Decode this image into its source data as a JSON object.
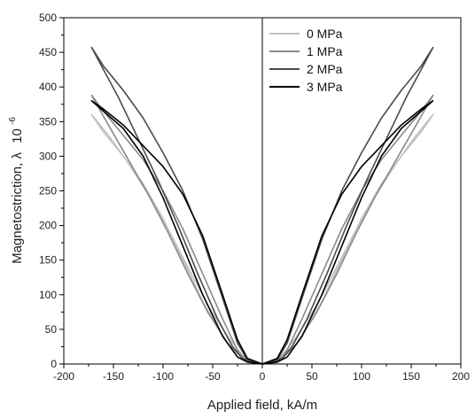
{
  "chart_data": {
    "type": "line",
    "xlabel": "Applied field, kA/m",
    "ylabel": "Magnetostriction, λ",
    "ylabel_scale": "10",
    "ylabel_scale_exp": "-6",
    "xlim": [
      -200,
      200
    ],
    "ylim": [
      0,
      500
    ],
    "xticks": [
      -200,
      -150,
      -100,
      -50,
      0,
      50,
      100,
      150,
      200
    ],
    "yticks": [
      0,
      50,
      100,
      150,
      200,
      250,
      300,
      350,
      400,
      450,
      500
    ],
    "legend_position": "top-right",
    "grid": false,
    "series": [
      {
        "name": "0 MPa",
        "color": "#c0c0c0",
        "upper": [
          [
            0,
            0
          ],
          [
            15,
            2
          ],
          [
            25,
            10
          ],
          [
            40,
            40
          ],
          [
            60,
            90
          ],
          [
            80,
            150
          ],
          [
            100,
            210
          ],
          [
            120,
            260
          ],
          [
            140,
            300
          ],
          [
            160,
            335
          ],
          [
            172,
            360
          ]
        ],
        "lower": [
          [
            0,
            0
          ],
          [
            10,
            3
          ],
          [
            20,
            12
          ],
          [
            35,
            40
          ],
          [
            55,
            85
          ],
          [
            75,
            140
          ],
          [
            95,
            195
          ],
          [
            115,
            245
          ],
          [
            135,
            290
          ],
          [
            155,
            330
          ],
          [
            172,
            360
          ]
        ]
      },
      {
        "name": "1 MPa",
        "color": "#8a8a8a",
        "upper": [
          [
            0,
            0
          ],
          [
            15,
            4
          ],
          [
            25,
            20
          ],
          [
            40,
            65
          ],
          [
            60,
            130
          ],
          [
            80,
            195
          ],
          [
            100,
            250
          ],
          [
            120,
            295
          ],
          [
            140,
            330
          ],
          [
            160,
            365
          ],
          [
            172,
            388
          ]
        ],
        "lower": [
          [
            0,
            0
          ],
          [
            10,
            2
          ],
          [
            20,
            8
          ],
          [
            35,
            30
          ],
          [
            55,
            75
          ],
          [
            75,
            130
          ],
          [
            95,
            190
          ],
          [
            115,
            245
          ],
          [
            135,
            295
          ],
          [
            155,
            345
          ],
          [
            172,
            388
          ]
        ]
      },
      {
        "name": "2 MPa",
        "color": "#4a4a4a",
        "upper": [
          [
            0,
            0
          ],
          [
            15,
            6
          ],
          [
            25,
            30
          ],
          [
            40,
            95
          ],
          [
            60,
            180
          ],
          [
            80,
            250
          ],
          [
            100,
            305
          ],
          [
            120,
            355
          ],
          [
            140,
            395
          ],
          [
            160,
            430
          ],
          [
            172,
            457
          ]
        ],
        "lower": [
          [
            0,
            0
          ],
          [
            10,
            2
          ],
          [
            20,
            8
          ],
          [
            30,
            25
          ],
          [
            45,
            65
          ],
          [
            65,
            130
          ],
          [
            85,
            200
          ],
          [
            105,
            265
          ],
          [
            125,
            325
          ],
          [
            145,
            385
          ],
          [
            160,
            425
          ],
          [
            172,
            457
          ]
        ]
      },
      {
        "name": "3 MPa",
        "color": "#000000",
        "upper": [
          [
            0,
            0
          ],
          [
            15,
            8
          ],
          [
            25,
            35
          ],
          [
            40,
            100
          ],
          [
            60,
            185
          ],
          [
            80,
            245
          ],
          [
            100,
            285
          ],
          [
            120,
            315
          ],
          [
            140,
            345
          ],
          [
            160,
            368
          ],
          [
            172,
            380
          ]
        ],
        "lower": [
          [
            0,
            0
          ],
          [
            15,
            3
          ],
          [
            25,
            10
          ],
          [
            40,
            40
          ],
          [
            60,
            100
          ],
          [
            80,
            170
          ],
          [
            100,
            240
          ],
          [
            120,
            300
          ],
          [
            140,
            340
          ],
          [
            160,
            365
          ],
          [
            172,
            380
          ]
        ]
      }
    ]
  }
}
